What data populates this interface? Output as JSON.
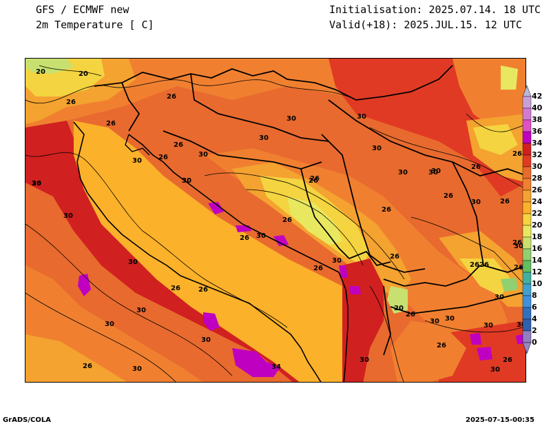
{
  "header": {
    "left_line1": "GFS / ECMWF new",
    "left_line2": "2m Temperature [ C]",
    "right_line1": "Initialisation: 2025.07.14. 18 UTC",
    "right_line2": "Valid(+18): 2025.JUL.15. 12 UTC"
  },
  "footer": {
    "left": "GrADS/COLA",
    "right": "2025-07-15-00:35"
  },
  "colorbar": {
    "labels": [
      "42",
      "40",
      "38",
      "36",
      "34",
      "32",
      "30",
      "28",
      "26",
      "24",
      "22",
      "20",
      "18",
      "16",
      "14",
      "12",
      "10",
      "8",
      "6",
      "4",
      "2",
      "0"
    ],
    "colors": [
      "#c8a0d8",
      "#d27ad2",
      "#e050c8",
      "#c000c0",
      "#d02020",
      "#e03a24",
      "#e86a2e",
      "#f08030",
      "#f4a230",
      "#fbb12a",
      "#f4d440",
      "#e8e860",
      "#c8e070",
      "#90d070",
      "#60c060",
      "#40b0a0",
      "#40a0d0",
      "#4090e0",
      "#3070c0",
      "#3060b0",
      "#9080c0"
    ],
    "top_arrow_color": "#b8b8d8",
    "bottom_arrow_color": "#9a86c8"
  },
  "map": {
    "contour_labels": [
      {
        "text": "20"
      },
      {
        "text": "20"
      },
      {
        "text": "26"
      },
      {
        "text": "26"
      },
      {
        "text": "26"
      },
      {
        "text": "30"
      },
      {
        "text": "26"
      },
      {
        "text": "26"
      },
      {
        "text": "30"
      },
      {
        "text": "30"
      },
      {
        "text": "30"
      },
      {
        "text": "30"
      },
      {
        "text": "30"
      },
      {
        "text": "26"
      },
      {
        "text": "30"
      },
      {
        "text": "30"
      },
      {
        "text": "26"
      },
      {
        "text": "30"
      },
      {
        "text": "26"
      },
      {
        "text": "26"
      },
      {
        "text": "30"
      },
      {
        "text": "30"
      },
      {
        "text": "30"
      },
      {
        "text": "26"
      },
      {
        "text": "30"
      },
      {
        "text": "30"
      },
      {
        "text": "26"
      },
      {
        "text": "26"
      },
      {
        "text": "30"
      },
      {
        "text": "26"
      },
      {
        "text": "30"
      },
      {
        "text": "30"
      },
      {
        "text": "26"
      },
      {
        "text": "30"
      },
      {
        "text": "30"
      },
      {
        "text": "26"
      },
      {
        "text": "26"
      },
      {
        "text": "20"
      },
      {
        "text": "26"
      },
      {
        "text": "30"
      },
      {
        "text": "30"
      },
      {
        "text": "26"
      },
      {
        "text": "30"
      },
      {
        "text": "30"
      },
      {
        "text": "26"
      },
      {
        "text": "26"
      },
      {
        "text": "34"
      },
      {
        "text": "30"
      },
      {
        "text": "30"
      },
      {
        "text": "26"
      },
      {
        "text": "30"
      },
      {
        "text": "26"
      },
      {
        "text": "26"
      },
      {
        "text": "30"
      },
      {
        "text": "26"
      },
      {
        "text": "30"
      },
      {
        "text": "26"
      },
      {
        "text": "30"
      },
      {
        "text": "26"
      },
      {
        "text": "26"
      }
    ]
  }
}
